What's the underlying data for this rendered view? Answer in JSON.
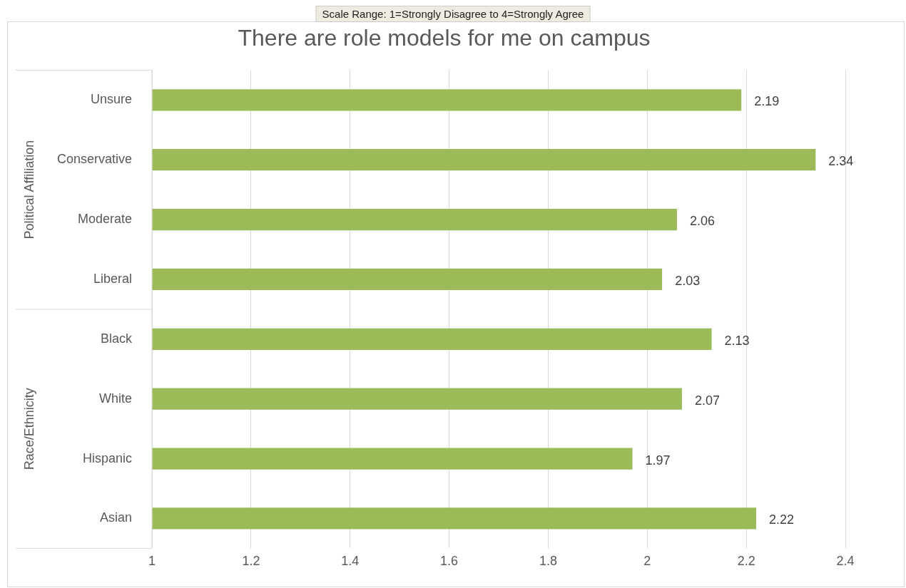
{
  "chart_data": {
    "type": "bar",
    "orientation": "horizontal",
    "title": "There are role models for me on campus",
    "categories": [
      "Unsure",
      "Conservative",
      "Moderate",
      "Liberal",
      "Black",
      "White",
      "Hispanic",
      "Asian"
    ],
    "values": [
      2.19,
      2.34,
      2.06,
      2.03,
      2.13,
      2.07,
      1.97,
      2.22
    ],
    "color": "#9bbb59",
    "xlim": [
      1,
      2.4
    ],
    "xticks": [
      1,
      1.2,
      1.4,
      1.6,
      1.8,
      2,
      2.2,
      2.4
    ],
    "grid": "x",
    "data_labels": true,
    "legend": false,
    "annotations": [
      "Scale Range: 1=Strongly Disagree to 4=Strongly Agree",
      "Political Affiliation",
      "Race/Ethnicity"
    ]
  }
}
